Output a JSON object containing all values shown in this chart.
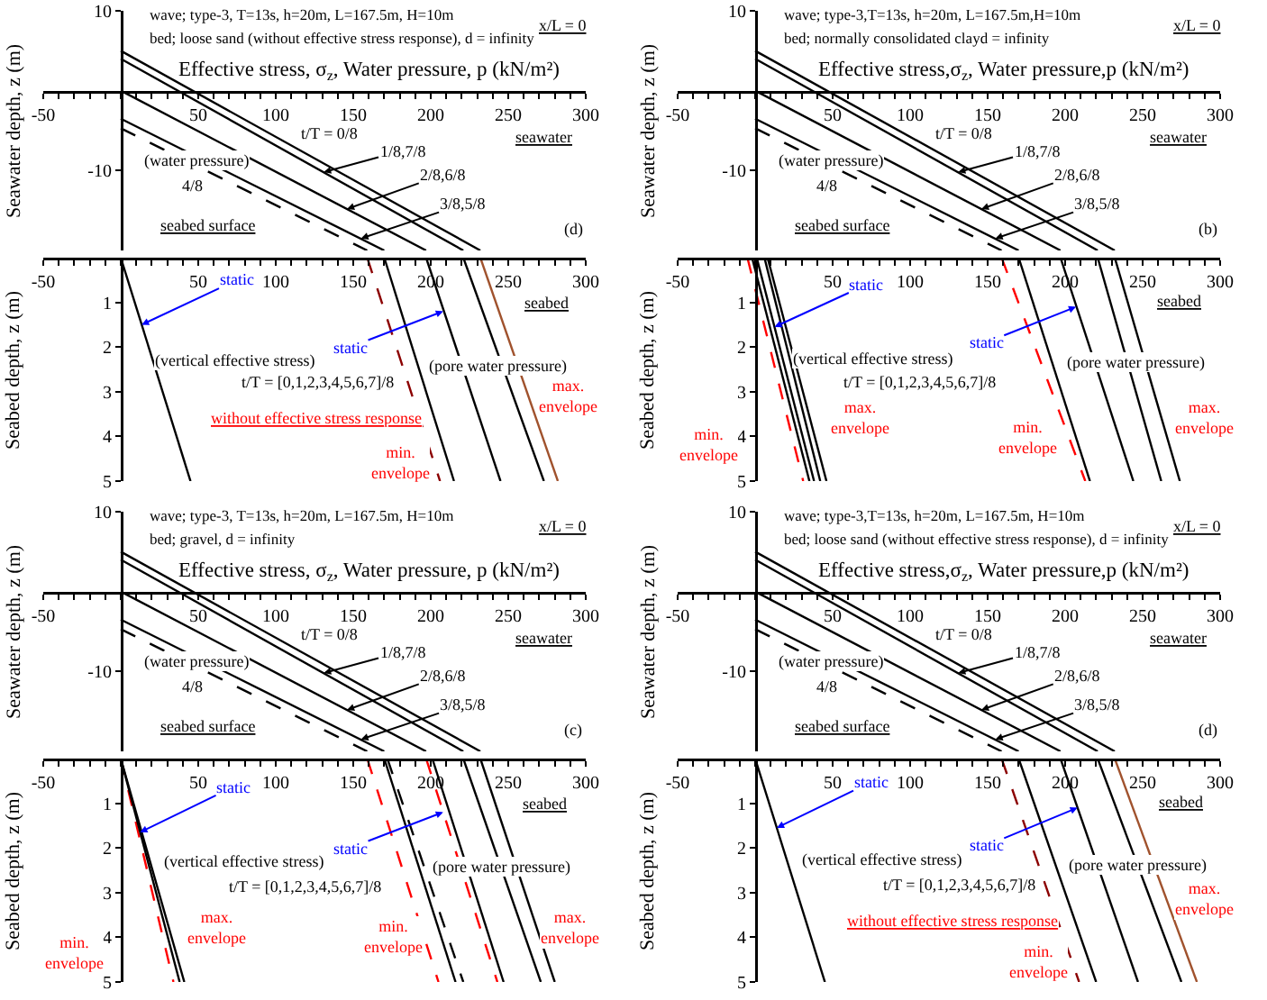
{
  "chart_data": [
    {
      "type": "line",
      "title": "wave; type-3, T=13s, h=20m, L=167.5m, H=10m",
      "subtitle": "bed; loose sand (without effective stress response), d = infinity",
      "xlabel": "Effective stress, σ$_{z}$, Water pressure, p (kN/m²)",
      "ylabel": "Seawater depth, z (m)",
      "xlim": [
        -50,
        300
      ],
      "ylim": [
        -20,
        10
      ],
      "xticks": [
        -50,
        {
          "value": -40,
          "label": null
        },
        {
          "value": -30,
          "label": null
        },
        {
          "value": -20,
          "label": null
        },
        {
          "value": -10,
          "label": null
        },
        {
          "value": 0,
          "label": null
        },
        {
          "value": 10,
          "label": null
        },
        {
          "value": 20,
          "label": null
        },
        {
          "value": 30,
          "label": null
        },
        {
          "value": 40,
          "label": null
        },
        50,
        {
          "value": 60,
          "label": null
        },
        {
          "value": 70,
          "label": null
        },
        {
          "value": 80,
          "label": null
        },
        {
          "value": 90,
          "label": null
        },
        100,
        {
          "value": 110,
          "label": null
        },
        {
          "value": 120,
          "label": null
        },
        {
          "value": 130,
          "label": null
        },
        {
          "value": 140,
          "label": null
        },
        150,
        {
          "value": 160,
          "label": null
        },
        {
          "value": 170,
          "label": null
        },
        {
          "value": 180,
          "label": null
        },
        {
          "value": 190,
          "label": null
        },
        200,
        {
          "value": 210,
          "label": null
        },
        {
          "value": 220,
          "label": null
        },
        {
          "value": 230,
          "label": null
        },
        {
          "value": 240,
          "label": null
        },
        250,
        {
          "value": 260,
          "label": null
        },
        {
          "value": 270,
          "label": null
        },
        {
          "value": 280,
          "label": null
        },
        {
          "value": 290,
          "label": null
        },
        300
      ],
      "yticks": [
        10,
        -10
      ],
      "grid": false,
      "marker": "none",
      "series": [
        {
          "x": [
            0,
            232
          ],
          "values": [
            5,
            -20
          ],
          "color": "#000000",
          "line_style": "solid"
        },
        {
          "x": [
            0,
            221
          ],
          "values": [
            4,
            -20
          ],
          "color": "#000000",
          "line_style": "solid"
        },
        {
          "x": [
            0,
            197
          ],
          "values": [
            0,
            -20
          ],
          "color": "#000000",
          "line_style": "solid"
        },
        {
          "x": [
            0,
            170
          ],
          "values": [
            -3.5,
            -20
          ],
          "color": "#000000",
          "line_style": "solid"
        },
        {
          "x": [
            0,
            159
          ],
          "values": [
            -4.7,
            -20
          ],
          "color": "#000000",
          "line_style": "dashed"
        }
      ],
      "annotations": [
        "x/L = 0",
        "t/T = 0/8",
        {
          "text": "1/8,7/8",
          "x": 131,
          "y": -10.2
        },
        {
          "text": "2/8,6/8",
          "x": 146,
          "y": -14.8
        },
        {
          "text": "3/8,5/8",
          "x": 155,
          "y": -18.5
        },
        "(water pressure)",
        "4/8",
        "seabed surface",
        "seawater",
        "(d)"
      ]
    },
    {
      "type": "line",
      "ylabel": "Seabed depth, z (m)",
      "xlim": [
        -50,
        300
      ],
      "ylim": [
        5,
        0
      ],
      "xticks": [
        -50,
        {
          "value": -40,
          "label": null
        },
        {
          "value": -30,
          "label": null
        },
        {
          "value": -20,
          "label": null
        },
        {
          "value": -10,
          "label": null
        },
        {
          "value": 0,
          "label": null
        },
        {
          "value": 10,
          "label": null
        },
        {
          "value": 20,
          "label": null
        },
        {
          "value": 30,
          "label": null
        },
        {
          "value": 40,
          "label": null
        },
        50,
        {
          "value": 60,
          "label": null
        },
        {
          "value": 70,
          "label": null
        },
        {
          "value": 80,
          "label": null
        },
        {
          "value": 90,
          "label": null
        },
        100,
        {
          "value": 110,
          "label": null
        },
        {
          "value": 120,
          "label": null
        },
        {
          "value": 130,
          "label": null
        },
        {
          "value": 140,
          "label": null
        },
        150,
        {
          "value": 160,
          "label": null
        },
        {
          "value": 170,
          "label": null
        },
        {
          "value": 180,
          "label": null
        },
        {
          "value": 190,
          "label": null
        },
        200,
        {
          "value": 210,
          "label": null
        },
        {
          "value": 220,
          "label": null
        },
        {
          "value": 230,
          "label": null
        },
        {
          "value": 240,
          "label": null
        },
        250,
        {
          "value": 260,
          "label": null
        },
        {
          "value": 270,
          "label": null
        },
        {
          "value": 280,
          "label": null
        },
        {
          "value": 290,
          "label": null
        },
        300
      ],
      "yticks": [
        1,
        2,
        3,
        4,
        5
      ],
      "grid": false,
      "marker": "none",
      "series": [
        {
          "x": [
            0,
            45
          ],
          "values": [
            0,
            5
          ],
          "color": "#000000",
          "line_style": "solid"
        },
        {
          "x": [
            159,
            206
          ],
          "values": [
            0,
            5
          ],
          "color": "#8b0000",
          "line_style": "dashed"
        },
        {
          "x": [
            170,
            215
          ],
          "values": [
            0,
            5
          ],
          "color": "#000000",
          "line_style": "solid"
        },
        {
          "x": [
            197,
            245
          ],
          "values": [
            0,
            5
          ],
          "color": "#000000",
          "line_style": "solid"
        },
        {
          "x": [
            221,
            273
          ],
          "values": [
            0,
            5
          ],
          "color": "#000000",
          "line_style": "solid"
        },
        {
          "x": [
            232,
            282
          ],
          "values": [
            0,
            5
          ],
          "color": "#a0522d",
          "line_style": "solid"
        }
      ],
      "annotations": [
        {
          "text": "static",
          "x": 13.5,
          "y": 1.5
        },
        {
          "text": "static",
          "x": 208,
          "y": 1.2
        },
        "seabed",
        "(vertical effective stress)",
        "(pore water pressure)",
        "t/T = [0,1,2,3,4,5,6,7]/8",
        "without effective stress response",
        "max.\nenvelope",
        "min.\nenvelope"
      ]
    },
    {
      "type": "line",
      "title": "wave; type-3,T=13s, h=20m, L=167.5m,H=10m",
      "subtitle": "bed; normally consolidated clayd = infinity",
      "xlabel": "Effective stress,σ$_{z}$, Water pressure,p (kN/m²)",
      "ylabel": "Seawater depth, z (m)",
      "xlim": [
        -50,
        300
      ],
      "ylim": [
        -20,
        10
      ],
      "xticks": [
        -50,
        {
          "value": -40,
          "label": null
        },
        {
          "value": -30,
          "label": null
        },
        {
          "value": -20,
          "label": null
        },
        {
          "value": -10,
          "label": null
        },
        {
          "value": 0,
          "label": null
        },
        {
          "value": 10,
          "label": null
        },
        {
          "value": 20,
          "label": null
        },
        {
          "value": 30,
          "label": null
        },
        {
          "value": 40,
          "label": null
        },
        50,
        {
          "value": 60,
          "label": null
        },
        {
          "value": 70,
          "label": null
        },
        {
          "value": 80,
          "label": null
        },
        {
          "value": 90,
          "label": null
        },
        100,
        {
          "value": 110,
          "label": null
        },
        {
          "value": 120,
          "label": null
        },
        {
          "value": 130,
          "label": null
        },
        {
          "value": 140,
          "label": null
        },
        150,
        {
          "value": 160,
          "label": null
        },
        {
          "value": 170,
          "label": null
        },
        {
          "value": 180,
          "label": null
        },
        {
          "value": 190,
          "label": null
        },
        200,
        {
          "value": 210,
          "label": null
        },
        {
          "value": 220,
          "label": null
        },
        {
          "value": 230,
          "label": null
        },
        {
          "value": 240,
          "label": null
        },
        250,
        {
          "value": 260,
          "label": null
        },
        {
          "value": 270,
          "label": null
        },
        {
          "value": 280,
          "label": null
        },
        {
          "value": 290,
          "label": null
        },
        300
      ],
      "yticks": [
        10,
        -10
      ],
      "grid": false,
      "marker": "none",
      "series": [
        {
          "x": [
            0,
            232
          ],
          "values": [
            5,
            -20
          ],
          "color": "#000000",
          "line_style": "solid"
        },
        {
          "x": [
            0,
            221
          ],
          "values": [
            4,
            -20
          ],
          "color": "#000000",
          "line_style": "solid"
        },
        {
          "x": [
            0,
            197
          ],
          "values": [
            0,
            -20
          ],
          "color": "#000000",
          "line_style": "solid"
        },
        {
          "x": [
            0,
            170
          ],
          "values": [
            -3.5,
            -20
          ],
          "color": "#000000",
          "line_style": "solid"
        },
        {
          "x": [
            0,
            159
          ],
          "values": [
            -4.7,
            -20
          ],
          "color": "#000000",
          "line_style": "dashed"
        }
      ],
      "annotations": [
        "x/L = 0",
        "t/T = 0/8",
        {
          "text": "1/8,7/8",
          "x": 131,
          "y": -10.2
        },
        {
          "text": "2/8,6/8",
          "x": 146,
          "y": -14.8
        },
        {
          "text": "3/8,5/8",
          "x": 155,
          "y": -18.5
        },
        "(water pressure)",
        "4/8",
        "seabed surface",
        "seawater",
        "(b)"
      ]
    },
    {
      "type": "line",
      "ylabel": "Seabed depth, z (m)",
      "xlim": [
        -50,
        300
      ],
      "ylim": [
        5,
        0
      ],
      "xticks": [
        -50,
        {
          "value": -40,
          "label": null
        },
        {
          "value": -30,
          "label": null
        },
        {
          "value": -20,
          "label": null
        },
        {
          "value": -10,
          "label": null
        },
        {
          "value": 0,
          "label": null
        },
        {
          "value": 10,
          "label": null
        },
        {
          "value": 20,
          "label": null
        },
        {
          "value": 30,
          "label": null
        },
        {
          "value": 40,
          "label": null
        },
        50,
        {
          "value": 60,
          "label": null
        },
        {
          "value": 70,
          "label": null
        },
        {
          "value": 80,
          "label": null
        },
        {
          "value": 90,
          "label": null
        },
        100,
        {
          "value": 110,
          "label": null
        },
        {
          "value": 120,
          "label": null
        },
        {
          "value": 130,
          "label": null
        },
        {
          "value": 140,
          "label": null
        },
        150,
        {
          "value": 160,
          "label": null
        },
        {
          "value": 170,
          "label": null
        },
        {
          "value": 180,
          "label": null
        },
        {
          "value": 190,
          "label": null
        },
        200,
        {
          "value": 210,
          "label": null
        },
        {
          "value": 220,
          "label": null
        },
        {
          "value": 230,
          "label": null
        },
        {
          "value": 240,
          "label": null
        },
        250,
        {
          "value": 260,
          "label": null
        },
        {
          "value": 270,
          "label": null
        },
        {
          "value": 280,
          "label": null
        },
        {
          "value": 290,
          "label": null
        },
        300
      ],
      "yticks": [
        1,
        2,
        3,
        4,
        5
      ],
      "grid": false,
      "marker": "none",
      "series": [
        {
          "x": [
            -5,
            31
          ],
          "values": [
            0,
            5
          ],
          "color": "#ff0000",
          "line_style": "dashed"
        },
        {
          "x": [
            -2,
            35
          ],
          "values": [
            0,
            5
          ],
          "color": "#000000",
          "line_style": "solid"
        },
        {
          "x": [
            1,
            38
          ],
          "values": [
            0,
            5
          ],
          "color": "#000000",
          "line_style": "solid"
        },
        {
          "x": [
            6,
            42
          ],
          "values": [
            0,
            5
          ],
          "color": "#000000",
          "line_style": "solid"
        },
        {
          "x": [
            8,
            46
          ],
          "values": [
            0,
            5
          ],
          "color": "#000000",
          "line_style": "solid"
        },
        {
          "x": [
            159,
            213
          ],
          "values": [
            0,
            5
          ],
          "color": "#ff0000",
          "line_style": "dashed"
        },
        {
          "x": [
            170,
            216
          ],
          "values": [
            0,
            5
          ],
          "color": "#000000",
          "line_style": "solid"
        },
        {
          "x": [
            197,
            244
          ],
          "values": [
            0,
            5
          ],
          "color": "#000000",
          "line_style": "solid"
        },
        {
          "x": [
            221,
            262
          ],
          "values": [
            0,
            5
          ],
          "color": "#000000",
          "line_style": "solid"
        },
        {
          "x": [
            232,
            274
          ],
          "values": [
            0,
            5
          ],
          "color": "#000000",
          "line_style": "solid"
        }
      ],
      "annotations": [
        {
          "text": "static",
          "x": 12.5,
          "y": 1.55
        },
        {
          "text": "static",
          "x": 207,
          "y": 1.1
        },
        "seabed",
        "(vertical effective stress)",
        "(pore water pressure)",
        "t/T = [0,1,2,3,4,5,6,7]/8",
        "max.\nenvelope",
        "min.\nenvelope",
        "min.\nenvelope",
        "max.\nenvelope"
      ]
    },
    {
      "type": "line",
      "title": "wave; type-3, T=13s, h=20m, L=167.5m, H=10m",
      "subtitle": "bed; gravel, d = infinity",
      "xlabel": "Effective stress, σ$_{z}$, Water pressure, p (kN/m²)",
      "ylabel": "Seawater depth, z (m)",
      "xlim": [
        -50,
        300
      ],
      "ylim": [
        -20,
        10
      ],
      "xticks": [
        -50,
        {
          "value": -40,
          "label": null
        },
        {
          "value": -30,
          "label": null
        },
        {
          "value": -20,
          "label": null
        },
        {
          "value": -10,
          "label": null
        },
        {
          "value": 0,
          "label": null
        },
        {
          "value": 10,
          "label": null
        },
        {
          "value": 20,
          "label": null
        },
        {
          "value": 30,
          "label": null
        },
        {
          "value": 40,
          "label": null
        },
        50,
        {
          "value": 60,
          "label": null
        },
        {
          "value": 70,
          "label": null
        },
        {
          "value": 80,
          "label": null
        },
        {
          "value": 90,
          "label": null
        },
        100,
        {
          "value": 110,
          "label": null
        },
        {
          "value": 120,
          "label": null
        },
        {
          "value": 130,
          "label": null
        },
        {
          "value": 140,
          "label": null
        },
        150,
        {
          "value": 160,
          "label": null
        },
        {
          "value": 170,
          "label": null
        },
        {
          "value": 180,
          "label": null
        },
        {
          "value": 190,
          "label": null
        },
        200,
        {
          "value": 210,
          "label": null
        },
        {
          "value": 220,
          "label": null
        },
        {
          "value": 230,
          "label": null
        },
        {
          "value": 240,
          "label": null
        },
        250,
        {
          "value": 260,
          "label": null
        },
        {
          "value": 270,
          "label": null
        },
        {
          "value": 280,
          "label": null
        },
        {
          "value": 290,
          "label": null
        },
        300
      ],
      "yticks": [
        10,
        -10
      ],
      "grid": false,
      "marker": "none",
      "series": [
        {
          "x": [
            0,
            232
          ],
          "values": [
            5,
            -20
          ],
          "color": "#000000",
          "line_style": "solid"
        },
        {
          "x": [
            0,
            221
          ],
          "values": [
            4,
            -20
          ],
          "color": "#000000",
          "line_style": "solid"
        },
        {
          "x": [
            0,
            197
          ],
          "values": [
            0,
            -20
          ],
          "color": "#000000",
          "line_style": "solid"
        },
        {
          "x": [
            0,
            170
          ],
          "values": [
            -3.5,
            -20
          ],
          "color": "#000000",
          "line_style": "solid"
        },
        {
          "x": [
            0,
            159
          ],
          "values": [
            -4.7,
            -20
          ],
          "color": "#000000",
          "line_style": "dashed"
        }
      ],
      "annotations": [
        "x/L = 0",
        "t/T = 0/8",
        {
          "text": "1/8,7/8",
          "x": 131,
          "y": -10.2
        },
        {
          "text": "2/8,6/8",
          "x": 146,
          "y": -14.8
        },
        {
          "text": "3/8,5/8",
          "x": 155,
          "y": -18.5
        },
        "(water pressure)",
        "4/8",
        "seabed surface",
        "seawater",
        "(c)"
      ]
    },
    {
      "type": "line",
      "ylabel": "Seabed depth, z (m)",
      "xlim": [
        -50,
        300
      ],
      "ylim": [
        5,
        0
      ],
      "xticks": [
        -50,
        {
          "value": -40,
          "label": null
        },
        {
          "value": -30,
          "label": null
        },
        {
          "value": -20,
          "label": null
        },
        {
          "value": -10,
          "label": null
        },
        {
          "value": 0,
          "label": null
        },
        {
          "value": 10,
          "label": null
        },
        {
          "value": 20,
          "label": null
        },
        {
          "value": 30,
          "label": null
        },
        {
          "value": 40,
          "label": null
        },
        50,
        {
          "value": 60,
          "label": null
        },
        {
          "value": 70,
          "label": null
        },
        {
          "value": 80,
          "label": null
        },
        {
          "value": 90,
          "label": null
        },
        100,
        {
          "value": 110,
          "label": null
        },
        {
          "value": 120,
          "label": null
        },
        {
          "value": 130,
          "label": null
        },
        {
          "value": 140,
          "label": null
        },
        150,
        {
          "value": 160,
          "label": null
        },
        {
          "value": 170,
          "label": null
        },
        {
          "value": 180,
          "label": null
        },
        {
          "value": 190,
          "label": null
        },
        200,
        {
          "value": 210,
          "label": null
        },
        {
          "value": 220,
          "label": null
        },
        {
          "value": 230,
          "label": null
        },
        {
          "value": 240,
          "label": null
        },
        250,
        {
          "value": 260,
          "label": null
        },
        {
          "value": 270,
          "label": null
        },
        {
          "value": 280,
          "label": null
        },
        {
          "value": 290,
          "label": null
        },
        300
      ],
      "yticks": [
        1,
        2,
        3,
        4,
        5
      ],
      "grid": false,
      "marker": "none",
      "series": [
        {
          "x": [
            0,
            34
          ],
          "values": [
            0,
            5
          ],
          "color": "#ff0000",
          "line_style": "dashed"
        },
        {
          "x": [
            0,
            38
          ],
          "values": [
            0,
            5
          ],
          "color": "#000000",
          "line_style": "solid"
        },
        {
          "x": [
            0,
            41
          ],
          "values": [
            0,
            5
          ],
          "color": "#000000",
          "line_style": "solid"
        },
        {
          "x": [
            159,
            205
          ],
          "values": [
            0,
            5
          ],
          "color": "#ff0000",
          "line_style": "dashed"
        },
        {
          "x": [
            170,
            216
          ],
          "values": [
            0,
            5
          ],
          "color": "#000000",
          "line_style": "solid"
        },
        {
          "x": [
            172,
            221
          ],
          "values": [
            0,
            5
          ],
          "color": "#000000",
          "line_style": "dashed"
        },
        {
          "x": [
            197,
            243
          ],
          "values": [
            0,
            5
          ],
          "color": "#ff0000",
          "line_style": "dashed"
        },
        {
          "x": [
            201,
            247
          ],
          "values": [
            0,
            5
          ],
          "color": "#000000",
          "line_style": "solid"
        },
        {
          "x": [
            221,
            271
          ],
          "values": [
            0,
            5
          ],
          "color": "#000000",
          "line_style": "solid"
        },
        {
          "x": [
            232,
            280
          ],
          "values": [
            0,
            5
          ],
          "color": "#000000",
          "line_style": "solid"
        }
      ],
      "annotations": [
        {
          "text": "static",
          "x": 12.5,
          "y": 1.65
        },
        {
          "text": "static",
          "x": 208,
          "y": 1.2
        },
        "seabed",
        "(vertical effective stress)",
        "(pore water pressure)",
        "t/T = [0,1,2,3,4,5,6,7]/8",
        "max.\nenvelope",
        "min.\nenvelope",
        "min.\nenvelope",
        "max.\nenvelope"
      ]
    },
    {
      "type": "line",
      "title": "wave; type-3,T=13s, h=20m, L=167.5m, H=10m",
      "subtitle": "bed; loose sand (without effective stress response), d = infinity",
      "xlabel": "Effective stress,σ$_{z}$, Water pressure,p (kN/m²)",
      "ylabel": "Seawater depth, z (m)",
      "xlim": [
        -50,
        300
      ],
      "ylim": [
        -20,
        10
      ],
      "xticks": [
        -50,
        {
          "value": -40,
          "label": null
        },
        {
          "value": -30,
          "label": null
        },
        {
          "value": -20,
          "label": null
        },
        {
          "value": -10,
          "label": null
        },
        {
          "value": 0,
          "label": null
        },
        {
          "value": 10,
          "label": null
        },
        {
          "value": 20,
          "label": null
        },
        {
          "value": 30,
          "label": null
        },
        {
          "value": 40,
          "label": null
        },
        50,
        {
          "value": 60,
          "label": null
        },
        {
          "value": 70,
          "label": null
        },
        {
          "value": 80,
          "label": null
        },
        {
          "value": 90,
          "label": null
        },
        100,
        {
          "value": 110,
          "label": null
        },
        {
          "value": 120,
          "label": null
        },
        {
          "value": 130,
          "label": null
        },
        {
          "value": 140,
          "label": null
        },
        150,
        {
          "value": 160,
          "label": null
        },
        {
          "value": 170,
          "label": null
        },
        {
          "value": 180,
          "label": null
        },
        {
          "value": 190,
          "label": null
        },
        200,
        {
          "value": 210,
          "label": null
        },
        {
          "value": 220,
          "label": null
        },
        {
          "value": 230,
          "label": null
        },
        {
          "value": 240,
          "label": null
        },
        250,
        {
          "value": 260,
          "label": null
        },
        {
          "value": 270,
          "label": null
        },
        {
          "value": 280,
          "label": null
        },
        {
          "value": 290,
          "label": null
        },
        300
      ],
      "yticks": [
        10,
        -10
      ],
      "grid": false,
      "marker": "none",
      "series": [
        {
          "x": [
            0,
            232
          ],
          "values": [
            5,
            -20
          ],
          "color": "#000000",
          "line_style": "solid"
        },
        {
          "x": [
            0,
            221
          ],
          "values": [
            4,
            -20
          ],
          "color": "#000000",
          "line_style": "solid"
        },
        {
          "x": [
            0,
            197
          ],
          "values": [
            0,
            -20
          ],
          "color": "#000000",
          "line_style": "solid"
        },
        {
          "x": [
            0,
            170
          ],
          "values": [
            -3.5,
            -20
          ],
          "color": "#000000",
          "line_style": "solid"
        },
        {
          "x": [
            0,
            159
          ],
          "values": [
            -4.7,
            -20
          ],
          "color": "#000000",
          "line_style": "dashed"
        }
      ],
      "annotations": [
        "x/L = 0",
        "t/T = 0/8",
        {
          "text": "1/8,7/8",
          "x": 131,
          "y": -10.2
        },
        {
          "text": "2/8,6/8",
          "x": 146,
          "y": -14.8
        },
        {
          "text": "3/8,5/8",
          "x": 155,
          "y": -18.5
        },
        "(water pressure)",
        "4/8",
        "seabed surface",
        "seawater",
        "(d)"
      ]
    },
    {
      "type": "line",
      "ylabel": "Seabed depth, z (m)",
      "xlim": [
        -50,
        300
      ],
      "ylim": [
        5,
        0
      ],
      "xticks": [
        -50,
        {
          "value": -40,
          "label": null
        },
        {
          "value": -30,
          "label": null
        },
        {
          "value": -20,
          "label": null
        },
        {
          "value": -10,
          "label": null
        },
        {
          "value": 0,
          "label": null
        },
        {
          "value": 10,
          "label": null
        },
        {
          "value": 20,
          "label": null
        },
        {
          "value": 30,
          "label": null
        },
        {
          "value": 40,
          "label": null
        },
        50,
        {
          "value": 60,
          "label": null
        },
        {
          "value": 70,
          "label": null
        },
        {
          "value": 80,
          "label": null
        },
        {
          "value": 90,
          "label": null
        },
        100,
        {
          "value": 110,
          "label": null
        },
        {
          "value": 120,
          "label": null
        },
        {
          "value": 130,
          "label": null
        },
        {
          "value": 140,
          "label": null
        },
        150,
        {
          "value": 160,
          "label": null
        },
        {
          "value": 170,
          "label": null
        },
        {
          "value": 180,
          "label": null
        },
        {
          "value": 190,
          "label": null
        },
        200,
        {
          "value": 210,
          "label": null
        },
        {
          "value": 220,
          "label": null
        },
        {
          "value": 230,
          "label": null
        },
        {
          "value": 240,
          "label": null
        },
        250,
        {
          "value": 260,
          "label": null
        },
        {
          "value": 270,
          "label": null
        },
        {
          "value": 280,
          "label": null
        },
        {
          "value": 290,
          "label": null
        },
        300
      ],
      "yticks": [
        1,
        2,
        3,
        4,
        5
      ],
      "grid": false,
      "marker": "none",
      "series": [
        {
          "x": [
            0,
            45
          ],
          "values": [
            0,
            5
          ],
          "color": "#000000",
          "line_style": "solid"
        },
        {
          "x": [
            159,
            209
          ],
          "values": [
            0,
            5
          ],
          "color": "#8b0000",
          "line_style": "dashed"
        },
        {
          "x": [
            170,
            220
          ],
          "values": [
            0,
            5
          ],
          "color": "#000000",
          "line_style": "solid"
        },
        {
          "x": [
            197,
            247
          ],
          "values": [
            0,
            5
          ],
          "color": "#000000",
          "line_style": "solid"
        },
        {
          "x": [
            221,
            275
          ],
          "values": [
            0,
            5
          ],
          "color": "#000000",
          "line_style": "solid"
        },
        {
          "x": [
            232,
            285
          ],
          "values": [
            0,
            5
          ],
          "color": "#a0522d",
          "line_style": "solid"
        }
      ],
      "annotations": [
        {
          "text": "static",
          "x": 14,
          "y": 1.55
        },
        {
          "text": "static",
          "x": 208,
          "y": 1.1
        },
        "seabed",
        "(vertical effective stress)",
        "(pore water pressure)",
        "t/T = [0,1,2,3,4,5,6,7]/8",
        "without effective stress response",
        "max.\nenvelope",
        "min.\nenvelope"
      ]
    }
  ]
}
